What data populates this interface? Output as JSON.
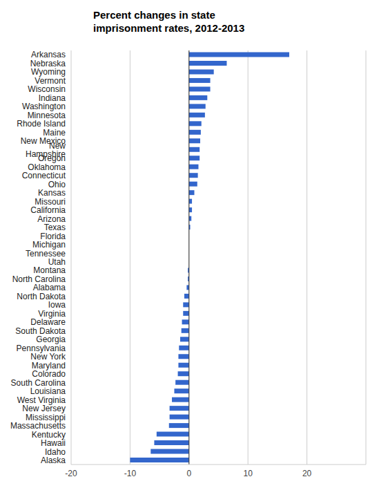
{
  "chart_data": {
    "type": "bar",
    "title": "Percent changes in state imprisonment rates, 2012-2013",
    "orientation": "horizontal",
    "categories": [
      "Arkansas",
      "Nebraska",
      "Wyoming",
      "Vermont",
      "Wisconsin",
      "Indiana",
      "Washington",
      "Minnesota",
      "Rhode Island",
      "Maine",
      "New Mexico",
      "New Hampshire",
      "Oregon",
      "Oklahoma",
      "Connecticut",
      "Ohio",
      "Kansas",
      "Missouri",
      "California",
      "Arizona",
      "Texas",
      "Florida",
      "Michigan",
      "Tennessee",
      "Utah",
      "Montana",
      "North Carolina",
      "Alabama",
      "North Dakota",
      "Iowa",
      "Virginia",
      "Delaware",
      "South Dakota",
      "Georgia",
      "Pennsylvania",
      "New York",
      "Maryland",
      "Colorado",
      "South Carolina",
      "Louisiana",
      "West Virginia",
      "New Jersey",
      "Mississippi",
      "Massachusetts",
      "Kentucky",
      "Hawaii",
      "Idaho",
      "Alaska"
    ],
    "values": [
      17.0,
      6.4,
      4.2,
      3.6,
      3.6,
      3.1,
      2.8,
      2.7,
      2.1,
      2.0,
      1.9,
      1.8,
      1.8,
      1.6,
      1.5,
      1.4,
      0.9,
      0.5,
      0.5,
      0.4,
      0.2,
      0,
      0,
      0,
      0,
      -0.2,
      -0.2,
      -0.4,
      -0.8,
      -1.0,
      -1.0,
      -1.2,
      -1.3,
      -1.5,
      -1.7,
      -1.8,
      -1.8,
      -1.9,
      -2.3,
      -2.5,
      -2.9,
      -3.3,
      -3.3,
      -3.4,
      -5.5,
      -5.9,
      -6.5,
      -10.0
    ],
    "color": "#3366cc",
    "xlim": [
      -20,
      30
    ],
    "xticks": [
      -20,
      -10,
      0,
      10,
      20
    ],
    "grid": true
  }
}
